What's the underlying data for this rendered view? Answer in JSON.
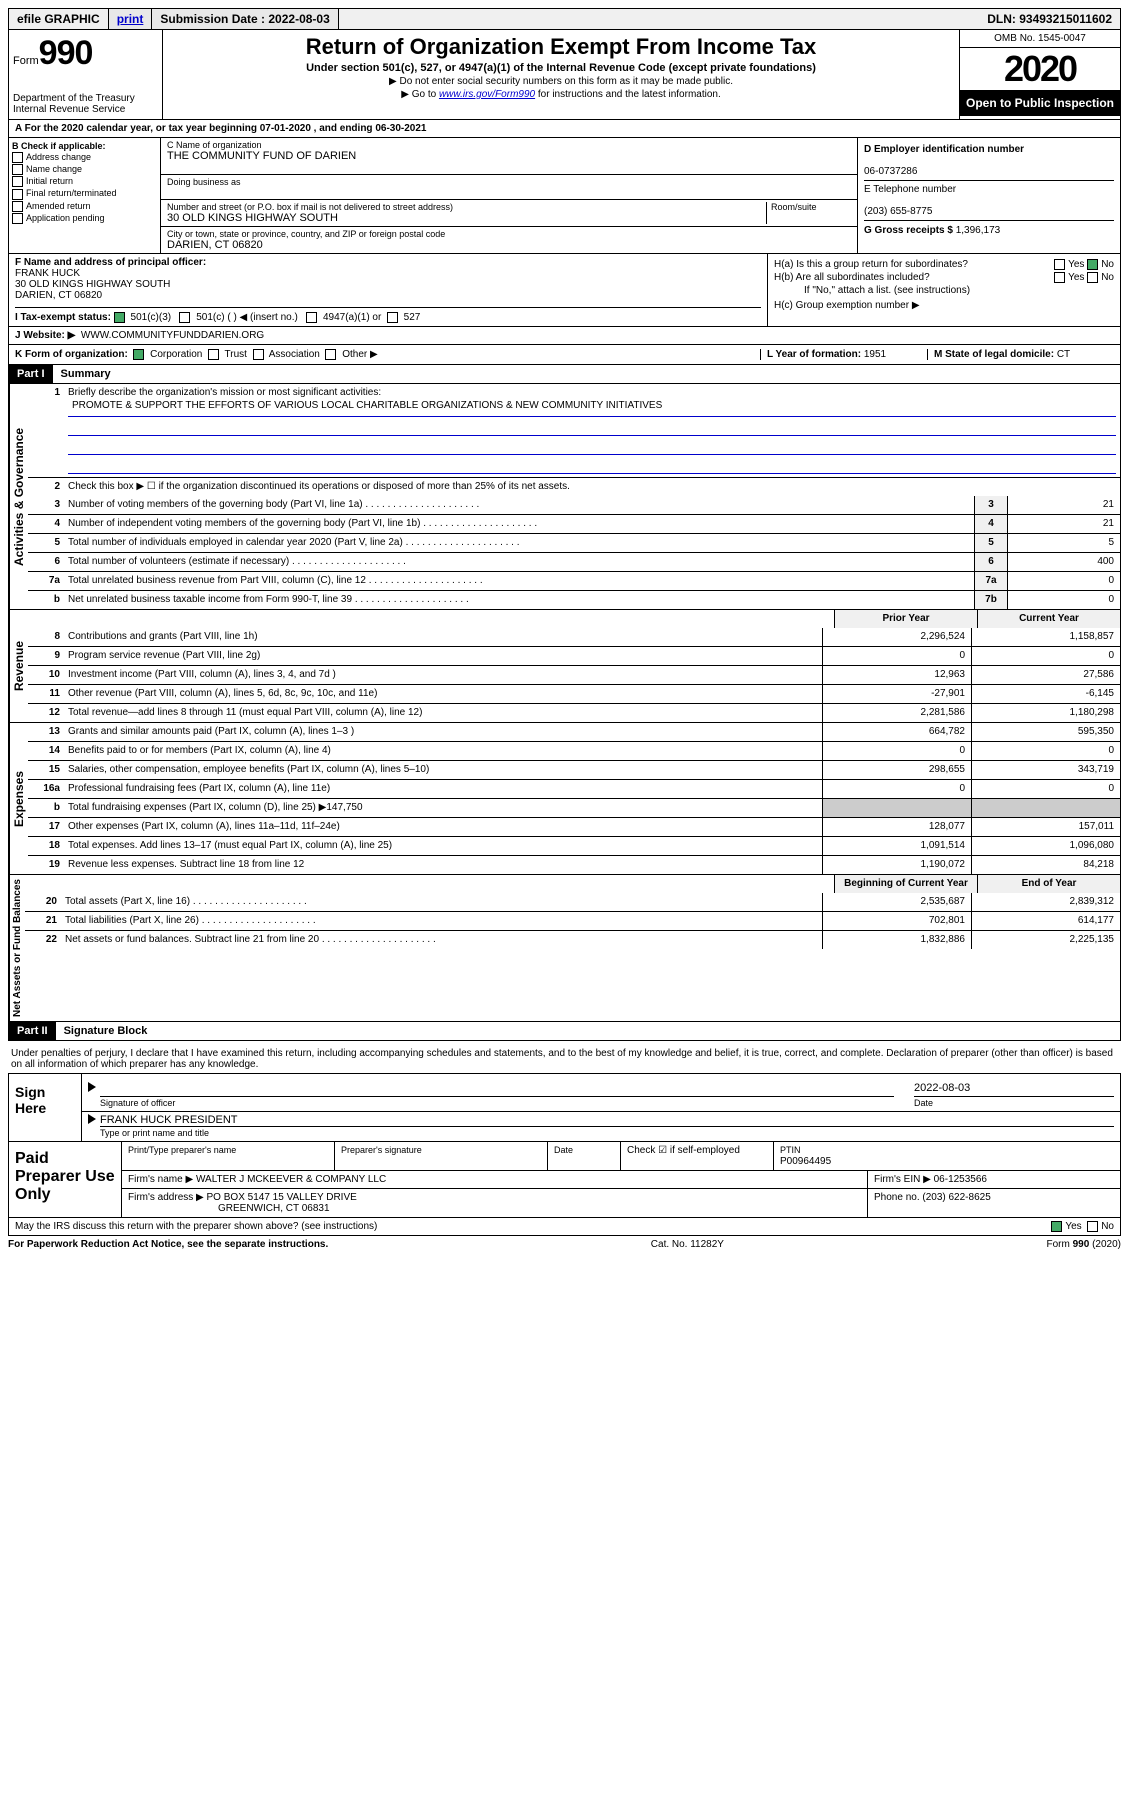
{
  "topbar": {
    "efile": "efile GRAPHIC",
    "print": "print",
    "submission_label": "Submission Date : 2022-08-03",
    "dln": "DLN: 93493215011602"
  },
  "header": {
    "form_label": "Form",
    "form_num": "990",
    "dept1": "Department of the Treasury",
    "dept2": "Internal Revenue Service",
    "title": "Return of Organization Exempt From Income Tax",
    "subtitle": "Under section 501(c), 527, or 4947(a)(1) of the Internal Revenue Code (except private foundations)",
    "instr1": "▶ Do not enter social security numbers on this form as it may be made public.",
    "instr2_pre": "▶ Go to ",
    "instr2_link": "www.irs.gov/Form990",
    "instr2_post": " for instructions and the latest information.",
    "omb": "OMB No. 1545-0047",
    "year": "2020",
    "open_public": "Open to Public Inspection"
  },
  "row_a": "A For the 2020 calendar year, or tax year beginning 07-01-2020   , and ending 06-30-2021",
  "box_b": {
    "label": "B Check if applicable:",
    "opts": [
      "Address change",
      "Name change",
      "Initial return",
      "Final return/terminated",
      "Amended return",
      "Application pending"
    ]
  },
  "box_c": {
    "name_label": "C Name of organization",
    "name": "THE COMMUNITY FUND OF DARIEN",
    "dba_label": "Doing business as",
    "street_label": "Number and street (or P.O. box if mail is not delivered to street address)",
    "room_label": "Room/suite",
    "street": "30 OLD KINGS HIGHWAY SOUTH",
    "city_label": "City or town, state or province, country, and ZIP or foreign postal code",
    "city": "DARIEN, CT  06820"
  },
  "box_d": {
    "ein_label": "D Employer identification number",
    "ein": "06-0737286",
    "phone_label": "E Telephone number",
    "phone": "(203) 655-8775",
    "gross_label": "G Gross receipts $ ",
    "gross": "1,396,173"
  },
  "box_f": {
    "label": "F Name and address of principal officer:",
    "name": "FRANK HUCK",
    "addr1": "30 OLD KINGS HIGHWAY SOUTH",
    "addr2": "DARIEN, CT  06820"
  },
  "box_h": {
    "ha": "H(a)  Is this a group return for subordinates?",
    "hb": "H(b)  Are all subordinates included?",
    "hb_note": "If \"No,\" attach a list. (see instructions)",
    "hc": "H(c)  Group exemption number ▶",
    "yes": "Yes",
    "no": "No"
  },
  "row_i": {
    "label": "I  Tax-exempt status:",
    "opt1": "501(c)(3)",
    "opt2": "501(c) (  ) ◀ (insert no.)",
    "opt3": "4947(a)(1) or",
    "opt4": "527"
  },
  "row_j": {
    "label": "J  Website: ▶",
    "val": "WWW.COMMUNITYFUNDDARIEN.ORG"
  },
  "row_k": {
    "label": "K Form of organization:",
    "opts": [
      "Corporation",
      "Trust",
      "Association",
      "Other ▶"
    ],
    "l_label": "L Year of formation: ",
    "l_val": "1951",
    "m_label": "M State of legal domicile: ",
    "m_val": "CT"
  },
  "part1": {
    "hdr": "Part I",
    "title": "Summary",
    "line1_label": "Briefly describe the organization's mission or most significant activities:",
    "line1_val": "PROMOTE & SUPPORT THE EFFORTS OF VARIOUS LOCAL CHARITABLE ORGANIZATIONS & NEW COMMUNITY INITIATIVES",
    "line2": "Check this box ▶ ☐  if the organization discontinued its operations or disposed of more than 25% of its net assets.",
    "governance_label": "Activities & Governance",
    "revenue_label": "Revenue",
    "expenses_label": "Expenses",
    "netassets_label": "Net Assets or Fund Balances",
    "lines_gov": [
      {
        "n": "3",
        "t": "Number of voting members of the governing body (Part VI, line 1a)",
        "box": "3",
        "v": "21"
      },
      {
        "n": "4",
        "t": "Number of independent voting members of the governing body (Part VI, line 1b)",
        "box": "4",
        "v": "21"
      },
      {
        "n": "5",
        "t": "Total number of individuals employed in calendar year 2020 (Part V, line 2a)",
        "box": "5",
        "v": "5"
      },
      {
        "n": "6",
        "t": "Total number of volunteers (estimate if necessary)",
        "box": "6",
        "v": "400"
      },
      {
        "n": "7a",
        "t": "Total unrelated business revenue from Part VIII, column (C), line 12",
        "box": "7a",
        "v": "0"
      },
      {
        "n": "b",
        "t": "Net unrelated business taxable income from Form 990-T, line 39",
        "box": "7b",
        "v": "0"
      }
    ],
    "prior_hdr": "Prior Year",
    "current_hdr": "Current Year",
    "lines_rev": [
      {
        "n": "8",
        "t": "Contributions and grants (Part VIII, line 1h)",
        "p": "2,296,524",
        "c": "1,158,857"
      },
      {
        "n": "9",
        "t": "Program service revenue (Part VIII, line 2g)",
        "p": "0",
        "c": "0"
      },
      {
        "n": "10",
        "t": "Investment income (Part VIII, column (A), lines 3, 4, and 7d )",
        "p": "12,963",
        "c": "27,586"
      },
      {
        "n": "11",
        "t": "Other revenue (Part VIII, column (A), lines 5, 6d, 8c, 9c, 10c, and 11e)",
        "p": "-27,901",
        "c": "-6,145"
      },
      {
        "n": "12",
        "t": "Total revenue—add lines 8 through 11 (must equal Part VIII, column (A), line 12)",
        "p": "2,281,586",
        "c": "1,180,298"
      }
    ],
    "lines_exp": [
      {
        "n": "13",
        "t": "Grants and similar amounts paid (Part IX, column (A), lines 1–3 )",
        "p": "664,782",
        "c": "595,350"
      },
      {
        "n": "14",
        "t": "Benefits paid to or for members (Part IX, column (A), line 4)",
        "p": "0",
        "c": "0"
      },
      {
        "n": "15",
        "t": "Salaries, other compensation, employee benefits (Part IX, column (A), lines 5–10)",
        "p": "298,655",
        "c": "343,719"
      },
      {
        "n": "16a",
        "t": "Professional fundraising fees (Part IX, column (A), line 11e)",
        "p": "0",
        "c": "0"
      },
      {
        "n": "b",
        "t": "Total fundraising expenses (Part IX, column (D), line 25) ▶147,750",
        "p": "",
        "c": "",
        "gray": true
      },
      {
        "n": "17",
        "t": "Other expenses (Part IX, column (A), lines 11a–11d, 11f–24e)",
        "p": "128,077",
        "c": "157,011"
      },
      {
        "n": "18",
        "t": "Total expenses. Add lines 13–17 (must equal Part IX, column (A), line 25)",
        "p": "1,091,514",
        "c": "1,096,080"
      },
      {
        "n": "19",
        "t": "Revenue less expenses. Subtract line 18 from line 12",
        "p": "1,190,072",
        "c": "84,218"
      }
    ],
    "begin_hdr": "Beginning of Current Year",
    "end_hdr": "End of Year",
    "lines_net": [
      {
        "n": "20",
        "t": "Total assets (Part X, line 16)",
        "p": "2,535,687",
        "c": "2,839,312"
      },
      {
        "n": "21",
        "t": "Total liabilities (Part X, line 26)",
        "p": "702,801",
        "c": "614,177"
      },
      {
        "n": "22",
        "t": "Net assets or fund balances. Subtract line 21 from line 20",
        "p": "1,832,886",
        "c": "2,225,135"
      }
    ]
  },
  "part2": {
    "hdr": "Part II",
    "title": "Signature Block",
    "decl": "Under penalties of perjury, I declare that I have examined this return, including accompanying schedules and statements, and to the best of my knowledge and belief, it is true, correct, and complete. Declaration of preparer (other than officer) is based on all information of which preparer has any knowledge.",
    "sign_here": "Sign Here",
    "sig_officer": "Signature of officer",
    "sig_date": "2022-08-03",
    "date_label": "Date",
    "officer_name": "FRANK HUCK  PRESIDENT",
    "type_label": "Type or print name and title",
    "paid_prep": "Paid Preparer Use Only",
    "prep_name_label": "Print/Type preparer's name",
    "prep_sig_label": "Preparer's signature",
    "prep_date_label": "Date",
    "check_if": "Check ☑ if self-employed",
    "ptin_label": "PTIN",
    "ptin": "P00964495",
    "firm_name_label": "Firm's name    ▶",
    "firm_name": "WALTER J MCKEEVER & COMPANY LLC",
    "firm_ein_label": "Firm's EIN ▶",
    "firm_ein": "06-1253566",
    "firm_addr_label": "Firm's address ▶",
    "firm_addr1": "PO BOX 5147 15 VALLEY DRIVE",
    "firm_addr2": "GREENWICH, CT  06831",
    "firm_phone_label": "Phone no. ",
    "firm_phone": "(203) 622-8625",
    "discuss": "May the IRS discuss this return with the preparer shown above? (see instructions)",
    "paperwork": "For Paperwork Reduction Act Notice, see the separate instructions.",
    "catno": "Cat. No. 11282Y",
    "formfoot": "Form 990 (2020)"
  }
}
